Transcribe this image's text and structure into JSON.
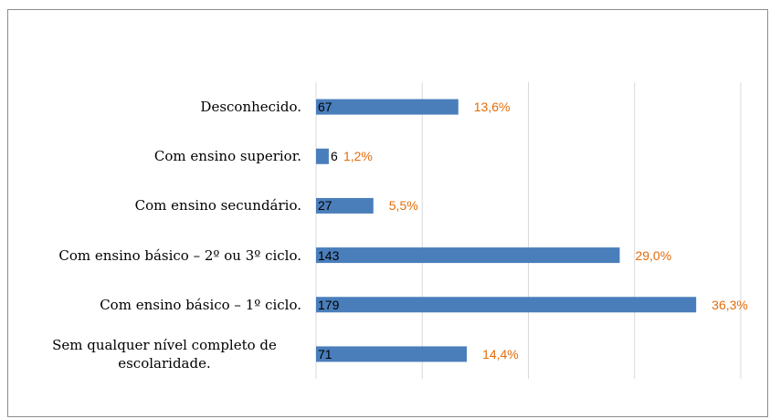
{
  "chart_data": {
    "type": "barh",
    "categories": [
      "Desconhecido.",
      "Com ensino superior.",
      "Com ensino secundário.",
      "Com ensino básico – 2º ou 3º ciclo.",
      "Com ensino básico – 1º ciclo.",
      "Sem qualquer nível completo de escolaridade."
    ],
    "values": [
      67,
      6,
      27,
      143,
      179,
      71
    ],
    "percentages": [
      13.6,
      1.2,
      5.5,
      29.0,
      36.3,
      14.4
    ],
    "percentage_labels": [
      "13,6%",
      "1,2%",
      "5,5%",
      "29,0%",
      "36,3%",
      "14,4%"
    ],
    "color": "#4a7ebb",
    "percentage_color": "#e36c09",
    "xlim": [
      0,
      200
    ],
    "xticks": [
      0,
      50,
      100,
      150,
      200
    ],
    "grid": true
  }
}
